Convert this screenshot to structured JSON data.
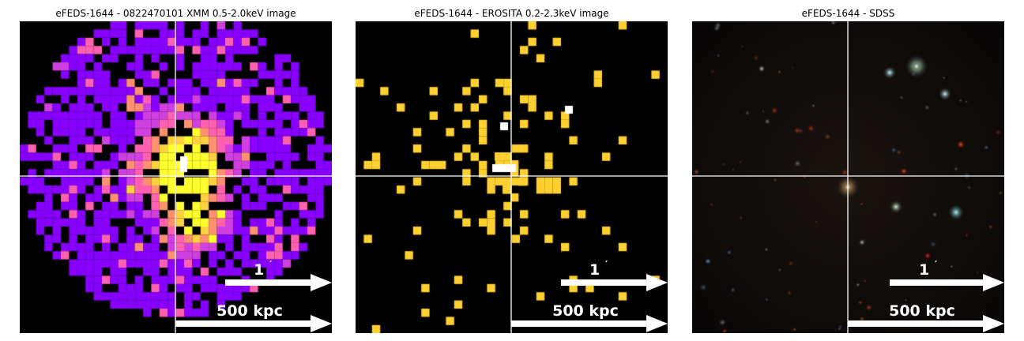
{
  "panels": [
    {
      "id": "xmm",
      "title": "eFEDS-1644 - 0822470101 XMM 0.5-2.0keV image",
      "scale_angle": "1",
      "scale_angle_unit": "′",
      "scale_distance": "500 kpc"
    },
    {
      "id": "erosita",
      "title": "eFEDS-1644 -  EROSITA 0.2-2.3keV image",
      "scale_angle": "1",
      "scale_angle_unit": "′",
      "scale_distance": "500 kpc"
    },
    {
      "id": "sdss",
      "title": "eFEDS-1644 - SDSS",
      "scale_angle": "1",
      "scale_angle_unit": "′",
      "scale_distance": "500 kpc"
    }
  ],
  "colors": {
    "xmm_low": "#8800ff",
    "xmm_mid": "#ff60c0",
    "xmm_high": "#ffff40",
    "erosita_pixel": "#ffd030",
    "crosshair": "#ffffff",
    "arrow": "#ffffff"
  }
}
